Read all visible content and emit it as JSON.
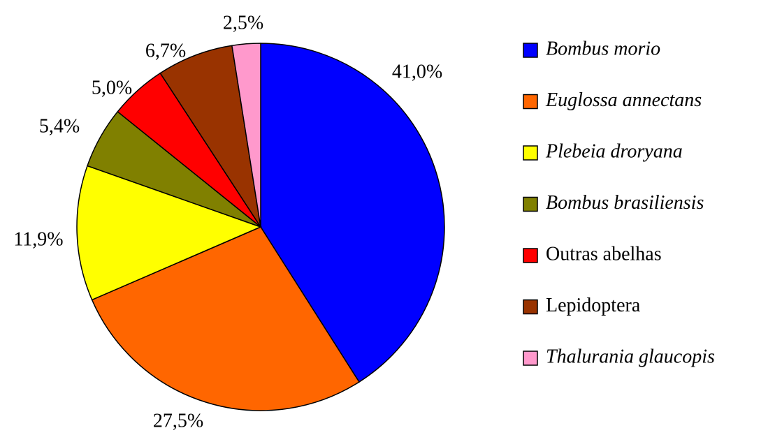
{
  "chart_data": {
    "type": "pie",
    "categories": [
      "Bombus morio",
      "Euglossa annectans",
      "Plebeia droryana",
      "Bombus brasiliensis",
      "Outras abelhas",
      "Lepidoptera",
      "Thalurania glaucopis"
    ],
    "values": [
      41.0,
      27.5,
      11.9,
      5.4,
      5.0,
      6.7,
      2.5
    ],
    "value_labels": [
      "41,0%",
      "27,5%",
      "11,9%",
      "5,4%",
      "5,0%",
      "6,7%",
      "2,5%"
    ],
    "colors": [
      "#0000ff",
      "#ff6600",
      "#ffff00",
      "#808000",
      "#ff0000",
      "#993300",
      "#ff99cc"
    ],
    "italic": [
      true,
      true,
      true,
      true,
      false,
      false,
      true
    ],
    "legend": "right"
  }
}
